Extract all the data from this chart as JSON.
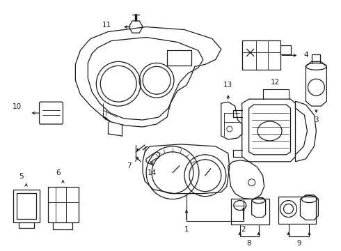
{
  "bg_color": "#ffffff",
  "line_color": "#1a1a1a",
  "figsize": [
    4.9,
    3.6
  ],
  "dpi": 100,
  "font_size": 7.5
}
